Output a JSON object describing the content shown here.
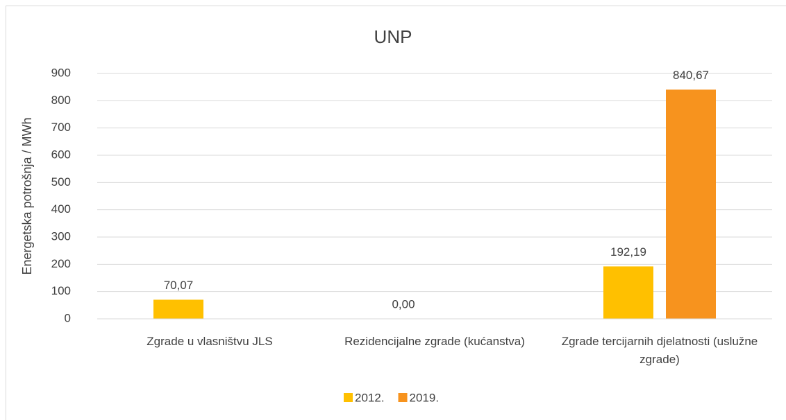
{
  "chart_data": {
    "type": "bar",
    "title": "UNP",
    "y_label": "Energetska potrošnja / MWh",
    "categories": [
      "Zgrade u vlasništvu JLS",
      "Rezidencijalne zgrade (kućanstva)",
      "Zgrade tercijarnih djelatnosti (uslužne zgrade)"
    ],
    "series": [
      {
        "name": "2012.",
        "color": "#ffc000",
        "values": [
          70.07,
          0,
          192.19
        ],
        "value_labels": [
          "70,07",
          "0,00",
          "192,19"
        ]
      },
      {
        "name": "2019.",
        "color": "#f7931e",
        "values": [
          null,
          null,
          840.67
        ],
        "value_labels": [
          null,
          null,
          "840,67"
        ]
      }
    ],
    "ylim": [
      0,
      900
    ],
    "yticks": [
      0,
      100,
      200,
      300,
      400,
      500,
      600,
      700,
      800,
      900
    ],
    "grid": true,
    "legend": "bottom"
  }
}
